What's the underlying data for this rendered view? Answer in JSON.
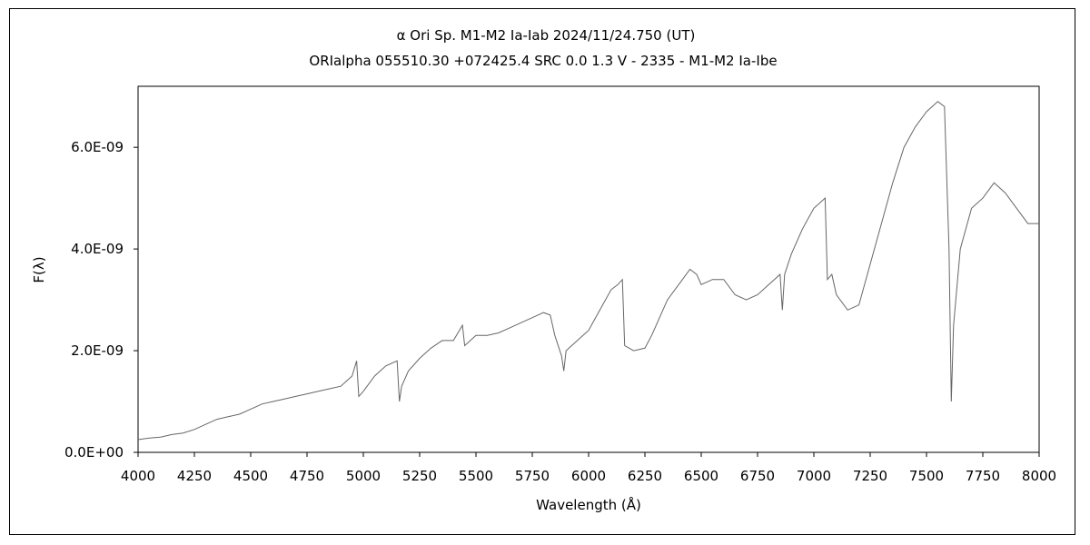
{
  "chart_data": {
    "type": "line",
    "title": "α Ori    Sp. M1-M2 Ia-Iab   2024/11/24.750 (UT)",
    "subtitle": "ORIalpha 055510.30 +072425.4 SRC 0.0 1.3 V - 2335 - M1-M2 Ia-Ibe",
    "xlabel": "Wavelength (Å)",
    "ylabel": "F(λ)",
    "xlim": [
      4000,
      8000
    ],
    "ylim": [
      0,
      7.2e-09
    ],
    "x_ticks": [
      4000,
      4250,
      4500,
      4750,
      5000,
      5250,
      5500,
      5750,
      6000,
      6250,
      6500,
      6750,
      7000,
      7250,
      7500,
      7750,
      8000
    ],
    "x_tick_labels": [
      "4000",
      "4250",
      "4500",
      "4750",
      "5000",
      "5250",
      "5500",
      "5750",
      "6000",
      "6250",
      "6500",
      "6750",
      "7000",
      "7250",
      "7500",
      "7750",
      "8000"
    ],
    "y_ticks": [
      0,
      2e-09,
      4e-09,
      6e-09
    ],
    "y_tick_labels": [
      "0.0E+00",
      "2.0E-09",
      "4.0E-09",
      "6.0E-09"
    ],
    "grid": false,
    "legend": "none",
    "series": [
      {
        "color": "#666666",
        "x": [
          4000,
          4050,
          4100,
          4150,
          4200,
          4250,
          4300,
          4350,
          4400,
          4450,
          4500,
          4550,
          4600,
          4650,
          4700,
          4750,
          4800,
          4850,
          4900,
          4950,
          4970,
          4980,
          5000,
          5050,
          5100,
          5150,
          5160,
          5170,
          5200,
          5250,
          5300,
          5350,
          5400,
          5440,
          5450,
          5500,
          5550,
          5600,
          5650,
          5700,
          5750,
          5800,
          5830,
          5850,
          5880,
          5890,
          5900,
          5950,
          6000,
          6050,
          6100,
          6130,
          6150,
          6160,
          6200,
          6250,
          6280,
          6300,
          6350,
          6400,
          6450,
          6480,
          6500,
          6550,
          6600,
          6650,
          6700,
          6750,
          6800,
          6850,
          6860,
          6870,
          6900,
          6950,
          7000,
          7050,
          7060,
          7080,
          7100,
          7150,
          7200,
          7250,
          7300,
          7350,
          7400,
          7450,
          7500,
          7550,
          7580,
          7600,
          7610,
          7620,
          7650,
          7700,
          7750,
          7800,
          7850,
          7900,
          7950,
          8000
        ],
        "y": [
          2.5e-10,
          2.8e-10,
          3e-10,
          3.5e-10,
          3.8e-10,
          4.5e-10,
          5.5e-10,
          6.5e-10,
          7e-10,
          7.5e-10,
          8.5e-10,
          9.5e-10,
          1e-09,
          1.05e-09,
          1.1e-09,
          1.15e-09,
          1.2e-09,
          1.25e-09,
          1.3e-09,
          1.5e-09,
          1.8e-09,
          1.1e-09,
          1.2e-09,
          1.5e-09,
          1.7e-09,
          1.8e-09,
          1e-09,
          1.3e-09,
          1.6e-09,
          1.85e-09,
          2.05e-09,
          2.2e-09,
          2.2e-09,
          2.5e-09,
          2.1e-09,
          2.3e-09,
          2.3e-09,
          2.35e-09,
          2.45e-09,
          2.55e-09,
          2.65e-09,
          2.75e-09,
          2.7e-09,
          2.3e-09,
          1.9e-09,
          1.6e-09,
          2e-09,
          2.2e-09,
          2.4e-09,
          2.8e-09,
          3.2e-09,
          3.3e-09,
          3.4e-09,
          2.1e-09,
          2e-09,
          2.05e-09,
          2.3e-09,
          2.5e-09,
          3e-09,
          3.3e-09,
          3.6e-09,
          3.5e-09,
          3.3e-09,
          3.4e-09,
          3.4e-09,
          3.1e-09,
          3e-09,
          3.1e-09,
          3.3e-09,
          3.5e-09,
          2.8e-09,
          3.5e-09,
          3.9e-09,
          4.4e-09,
          4.8e-09,
          5e-09,
          3.4e-09,
          3.5e-09,
          3.1e-09,
          2.8e-09,
          2.9e-09,
          3.7e-09,
          4.5e-09,
          5.3e-09,
          6e-09,
          6.4e-09,
          6.7e-09,
          6.9e-09,
          6.8e-09,
          4e-09,
          1e-09,
          2.5e-09,
          4e-09,
          4.8e-09,
          5e-09,
          5.3e-09,
          5.1e-09,
          4.8e-09,
          4.5e-09,
          4.5e-09
        ]
      }
    ]
  }
}
